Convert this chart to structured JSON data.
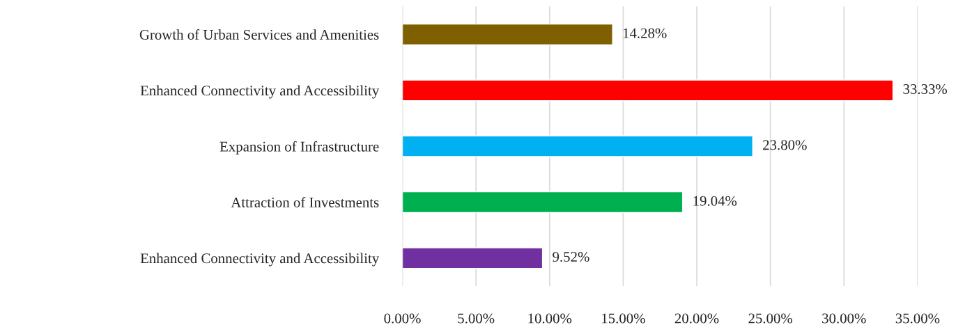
{
  "chart_data": {
    "type": "bar",
    "orientation": "horizontal",
    "categories": [
      "Growth of Urban Services and Amenities",
      "Enhanced Connectivity and Accessibility",
      "Expansion of Infrastructure",
      "Attraction of Investments",
      "Enhanced Connectivity and Accessibility"
    ],
    "values": [
      14.28,
      33.33,
      23.8,
      19.04,
      9.52
    ],
    "colors": [
      "#7f6000",
      "#ff0000",
      "#00b0f0",
      "#00b050",
      "#7030a0"
    ],
    "value_labels": [
      "14.28%",
      "33.33%",
      "23.80%",
      "19.04%",
      "9.52%"
    ],
    "xlim": [
      0,
      35
    ],
    "xticks": [
      {
        "value": 0,
        "label": "0.00%"
      },
      {
        "value": 5,
        "label": "5.00%"
      },
      {
        "value": 10,
        "label": "10.00%"
      },
      {
        "value": 15,
        "label": "15.00%"
      },
      {
        "value": 20,
        "label": "20.00%"
      },
      {
        "value": 25,
        "label": "25.00%"
      },
      {
        "value": 30,
        "label": "30.00%"
      },
      {
        "value": 35,
        "label": "35.00%"
      }
    ],
    "grid": "x",
    "legend": false
  }
}
